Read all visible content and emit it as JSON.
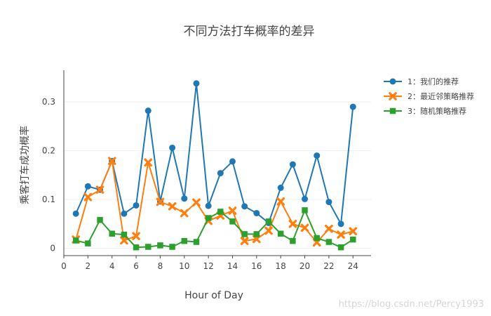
{
  "chart_data": {
    "type": "line",
    "title": "不同方法打车概率的差异",
    "xlabel": "Hour of Day",
    "ylabel": "乘客打车成功概率",
    "xlim": [
      0,
      25.5
    ],
    "ylim": [
      -0.015,
      0.365
    ],
    "xticks": [
      0,
      2,
      4,
      6,
      8,
      10,
      12,
      14,
      16,
      18,
      20,
      22,
      24
    ],
    "yticks": [
      0,
      0.1,
      0.2,
      0.3
    ],
    "ytick_labels": [
      "0",
      "0.1",
      "0.2",
      "0.3"
    ],
    "grid": true,
    "legend_position": "top-right",
    "x": [
      1,
      2,
      3,
      4,
      5,
      6,
      7,
      8,
      9,
      10,
      11,
      12,
      13,
      14,
      15,
      16,
      17,
      18,
      19,
      20,
      21,
      22,
      23,
      24
    ],
    "series": [
      {
        "name": "1：我们的推荐",
        "color": "#1f77b4",
        "marker": "circle",
        "values": [
          0.071,
          0.127,
          0.12,
          0.179,
          0.071,
          0.088,
          0.282,
          0.096,
          0.206,
          0.102,
          0.338,
          0.087,
          0.154,
          0.178,
          0.086,
          0.072,
          0.052,
          0.124,
          0.172,
          0.101,
          0.19,
          0.095,
          0.05,
          0.29
        ]
      },
      {
        "name": "2：最近邻策略推荐",
        "color": "#ff7f0e",
        "marker": "x",
        "values": [
          0.018,
          0.105,
          0.12,
          0.179,
          0.016,
          0.025,
          0.176,
          0.095,
          0.086,
          0.072,
          0.094,
          0.056,
          0.067,
          0.077,
          0.015,
          0.019,
          0.036,
          0.096,
          0.05,
          0.042,
          0.012,
          0.04,
          0.028,
          0.035
        ]
      },
      {
        "name": "3：随机策略推荐",
        "color": "#2ca02c",
        "marker": "square",
        "values": [
          0.016,
          0.01,
          0.058,
          0.03,
          0.028,
          0.002,
          0.003,
          0.006,
          0.003,
          0.015,
          0.013,
          0.062,
          0.075,
          0.055,
          0.029,
          0.029,
          0.055,
          0.03,
          0.015,
          0.078,
          0.021,
          0.013,
          0.002,
          0.018
        ]
      }
    ]
  },
  "watermark": "https://blog.csdn.net/Percy1993"
}
